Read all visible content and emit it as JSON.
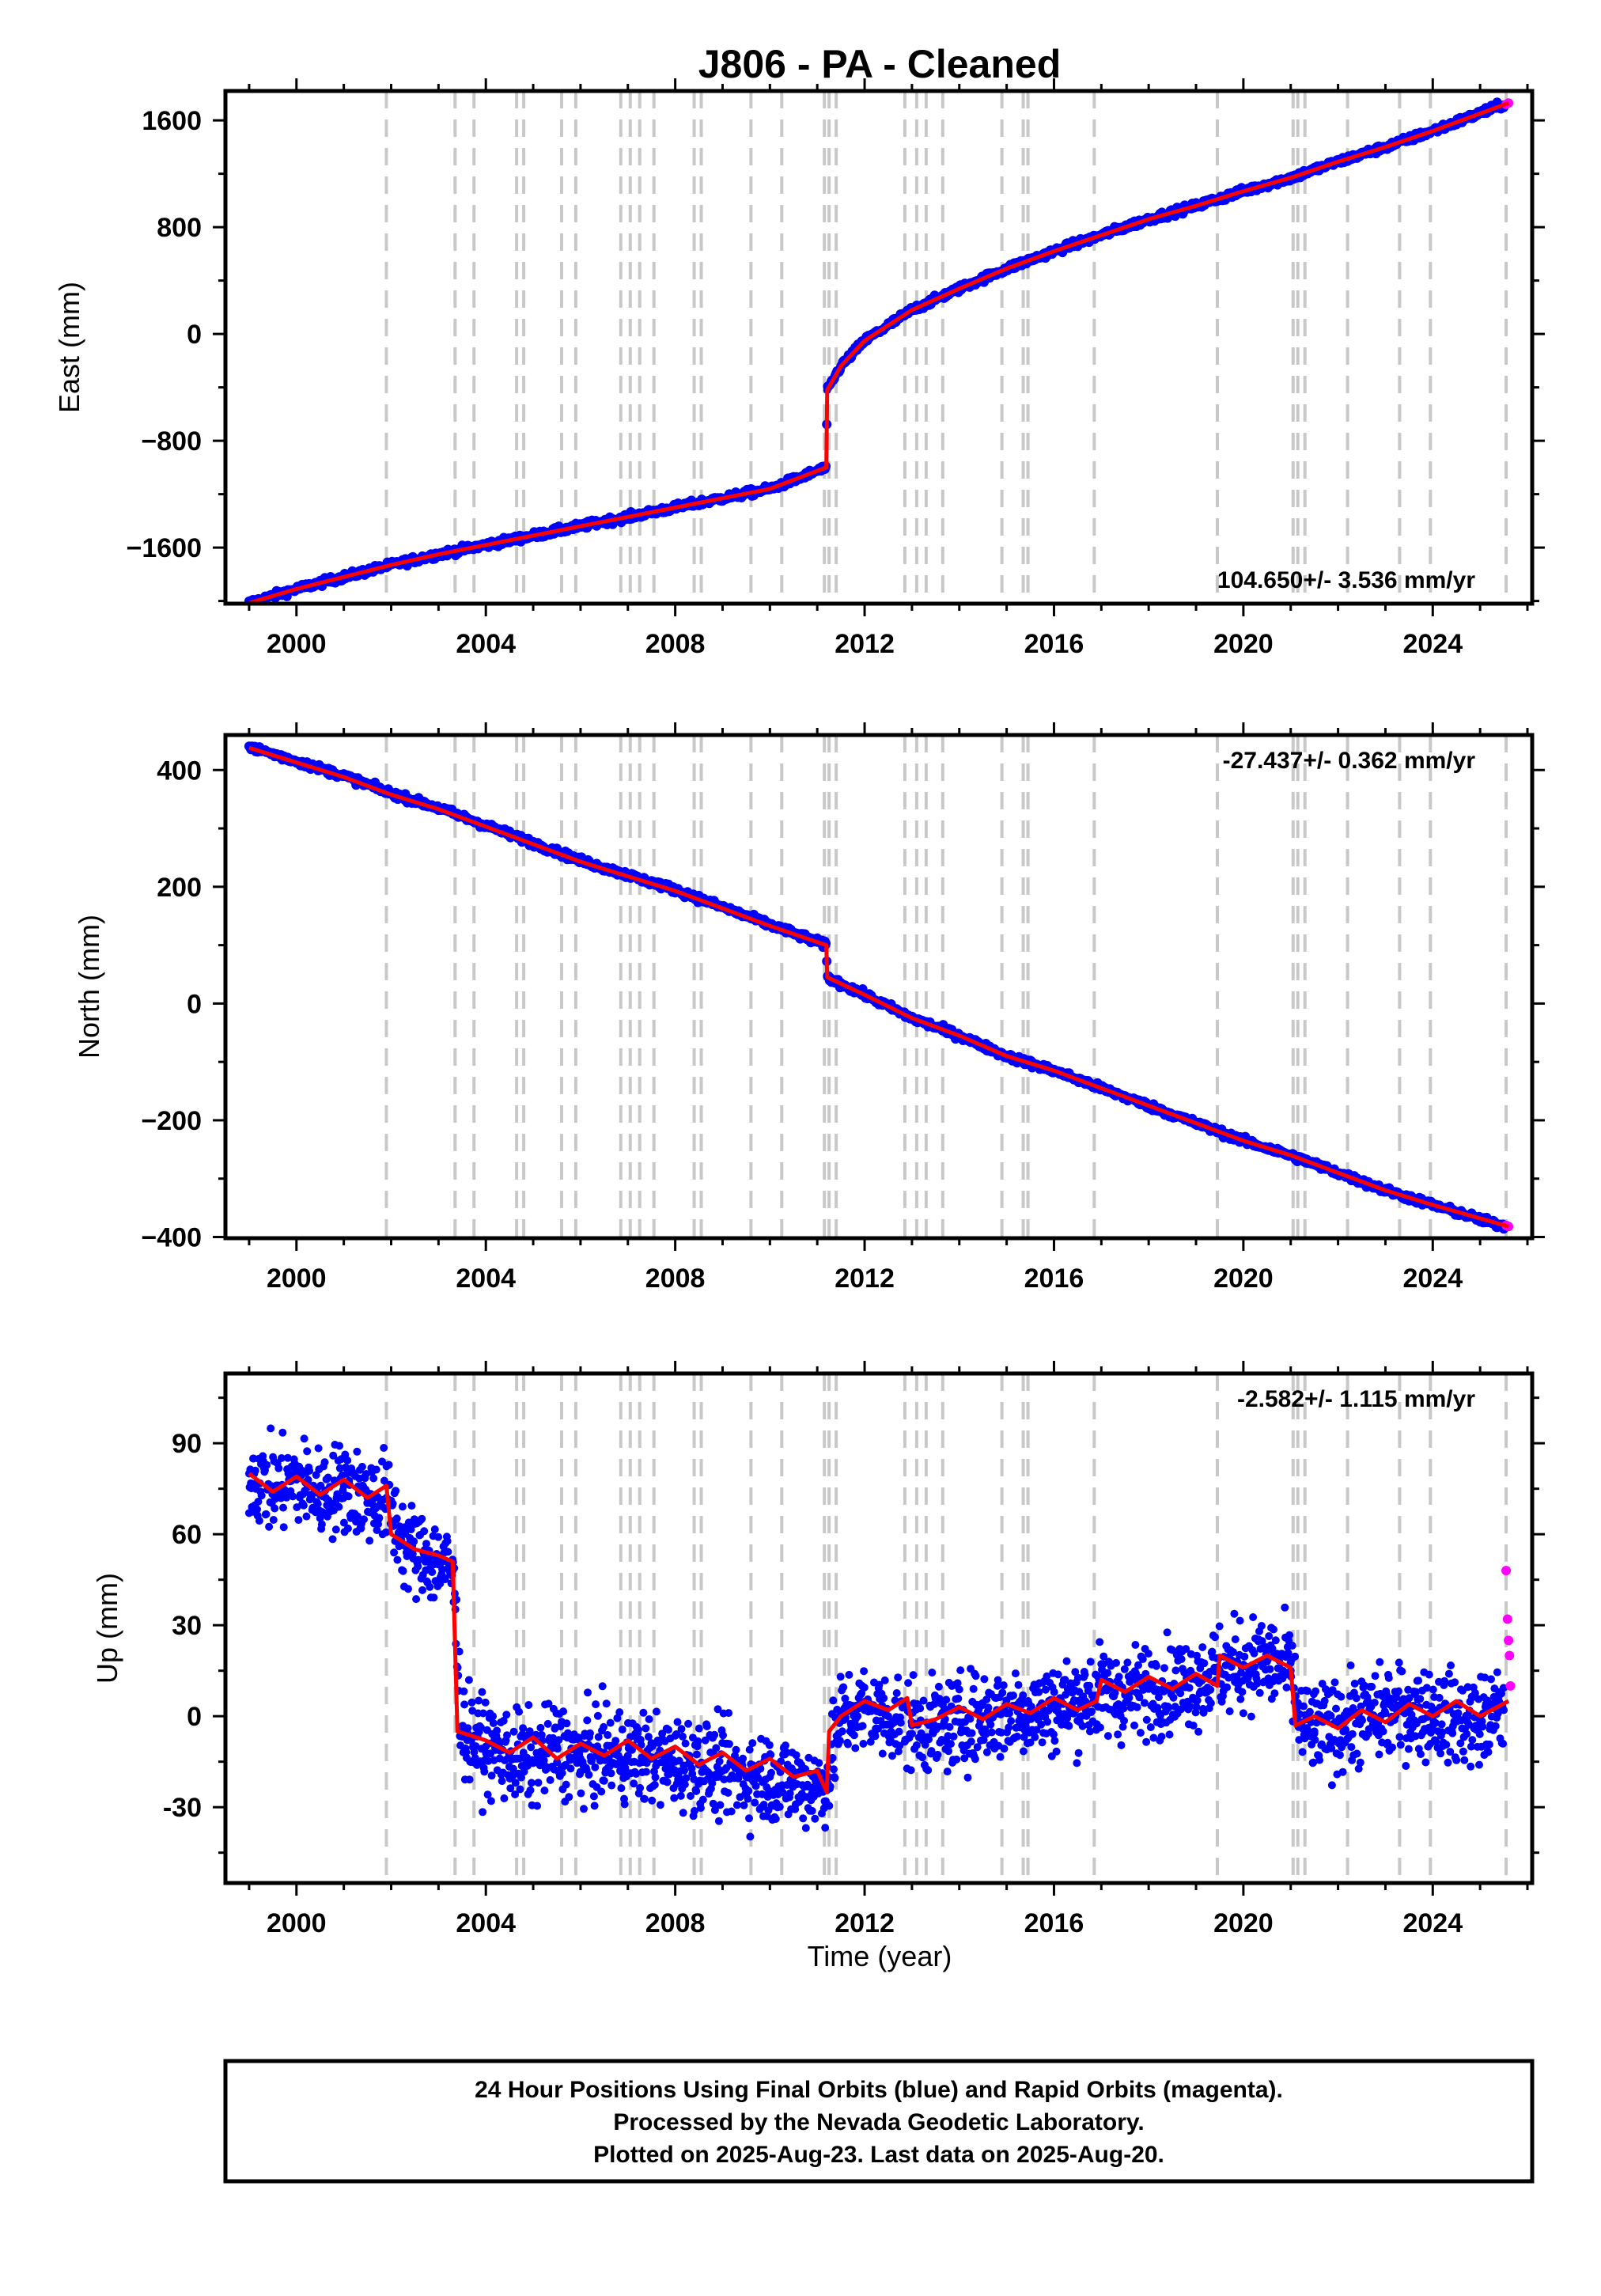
{
  "title": "J806  - PA - Cleaned",
  "xlabel": "Time (year)",
  "footer": {
    "line1": "24 Hour Positions Using Final Orbits (blue) and Rapid Orbits (magenta).",
    "line2": "Processed by the Nevada Geodetic Laboratory.",
    "line3": "Plotted on 2025-Aug-23. Last data on 2025-Aug-20."
  },
  "colors": {
    "final_orbits": "#0000ff",
    "rapid_orbits": "#ff00ff",
    "model": "#ff0000",
    "event_lines": "#c8c8c8"
  },
  "chart_data": [
    {
      "type": "scatter",
      "panel": "east",
      "ylabel": "East (mm)",
      "xlim": [
        1998.5,
        2026.1
      ],
      "ylim": [
        -2020,
        1820
      ],
      "xticks": [
        "2000",
        "2004",
        "2008",
        "2012",
        "2016",
        "2020",
        "2024"
      ],
      "yticks": [
        "1600",
        "800",
        "0",
        "−800",
        "−1600"
      ],
      "rate_label": "104.650+/- 3.536 mm/yr",
      "rate_position": "bottom-right",
      "event_lines_x": [
        2001.9,
        2003.35,
        2003.75,
        2004.65,
        2004.8,
        2005.6,
        2005.9,
        2006.85,
        2007.05,
        2007.25,
        2007.55,
        2008.4,
        2008.55,
        2009.6,
        2010.25,
        2011.15,
        2011.25,
        2011.4,
        2012.85,
        2013.1,
        2013.3,
        2013.65,
        2014.9,
        2015.35,
        2015.45,
        2016.85,
        2019.45,
        2021.05,
        2021.15,
        2021.3,
        2022.2,
        2023.3,
        2023.95,
        2025.55
      ],
      "series": [
        {
          "name": "Final Orbits",
          "marker": "dot",
          "x": [
            1999.0,
            2000.0,
            2001.0,
            2002.0,
            2003.0,
            2004.0,
            2005.0,
            2006.0,
            2007.0,
            2008.0,
            2009.0,
            2010.0,
            2011.19,
            2011.21,
            2011.5,
            2012.0,
            2013.0,
            2014.0,
            2015.0,
            2016.0,
            2017.0,
            2018.0,
            2019.0,
            2020.0,
            2021.0,
            2022.0,
            2023.0,
            2024.0,
            2025.5
          ],
          "y": [
            -2015,
            -1910,
            -1820,
            -1730,
            -1650,
            -1580,
            -1510,
            -1440,
            -1370,
            -1300,
            -1230,
            -1160,
            -1000,
            -420,
            -240,
            -50,
            180,
            340,
            490,
            620,
            740,
            860,
            960,
            1070,
            1170,
            1290,
            1400,
            1520,
            1720
          ]
        },
        {
          "name": "Rapid Orbits",
          "marker": "dot",
          "x": [
            2025.55,
            2025.6
          ],
          "y": [
            1720,
            1730
          ]
        },
        {
          "name": "Model",
          "marker": "line",
          "x": [
            1999.0,
            2000.0,
            2001.0,
            2002.0,
            2003.0,
            2004.0,
            2005.0,
            2006.0,
            2007.0,
            2008.0,
            2009.0,
            2010.0,
            2011.19,
            2011.21,
            2011.5,
            2012.0,
            2013.0,
            2014.0,
            2015.0,
            2016.0,
            2017.0,
            2018.0,
            2019.0,
            2020.0,
            2021.0,
            2022.0,
            2023.0,
            2024.0,
            2025.6
          ],
          "y": [
            -2015,
            -1910,
            -1820,
            -1730,
            -1650,
            -1580,
            -1510,
            -1440,
            -1370,
            -1300,
            -1230,
            -1160,
            -1000,
            -420,
            -240,
            -50,
            180,
            340,
            490,
            620,
            740,
            860,
            960,
            1070,
            1170,
            1290,
            1400,
            1520,
            1730
          ]
        }
      ]
    },
    {
      "type": "scatter",
      "panel": "north",
      "ylabel": "North (mm)",
      "xlim": [
        1998.5,
        2026.1
      ],
      "ylim": [
        -402,
        460
      ],
      "xticks": [
        "2000",
        "2004",
        "2008",
        "2012",
        "2016",
        "2020",
        "2024"
      ],
      "yticks": [
        "400",
        "200",
        "0",
        "−200",
        "−400"
      ],
      "rate_label": "-27.437+/- 0.362 mm/yr",
      "rate_position": "top-right",
      "series": [
        {
          "name": "Final Orbits",
          "marker": "dot",
          "x": [
            1999.0,
            2000.0,
            2001.0,
            2002.0,
            2003.0,
            2004.0,
            2005.0,
            2006.0,
            2007.0,
            2008.0,
            2009.0,
            2010.0,
            2011.19,
            2011.21,
            2012.0,
            2013.0,
            2014.0,
            2015.0,
            2016.0,
            2017.0,
            2018.0,
            2019.0,
            2020.0,
            2021.0,
            2022.0,
            2023.0,
            2024.0,
            2025.5
          ],
          "y": [
            440,
            415,
            390,
            360,
            335,
            305,
            275,
            245,
            220,
            195,
            165,
            135,
            100,
            45,
            15,
            -25,
            -55,
            -90,
            -115,
            -145,
            -175,
            -205,
            -235,
            -260,
            -290,
            -320,
            -345,
            -382
          ]
        },
        {
          "name": "Rapid Orbits",
          "marker": "dot",
          "x": [
            2025.55,
            2025.6
          ],
          "y": [
            -380,
            -382
          ]
        },
        {
          "name": "Model",
          "marker": "line",
          "x": [
            1999.0,
            2000.0,
            2001.0,
            2002.0,
            2003.0,
            2004.0,
            2005.0,
            2006.0,
            2007.0,
            2008.0,
            2009.0,
            2010.0,
            2011.19,
            2011.21,
            2012.0,
            2013.0,
            2014.0,
            2015.0,
            2016.0,
            2017.0,
            2018.0,
            2019.0,
            2020.0,
            2021.0,
            2022.0,
            2023.0,
            2024.0,
            2025.6
          ],
          "y": [
            438,
            413,
            388,
            358,
            333,
            303,
            273,
            243,
            218,
            193,
            163,
            133,
            100,
            45,
            15,
            -25,
            -55,
            -90,
            -115,
            -145,
            -175,
            -205,
            -235,
            -260,
            -290,
            -320,
            -345,
            -382
          ]
        }
      ]
    },
    {
      "type": "scatter",
      "panel": "up",
      "ylabel": "Up (mm)",
      "xlim": [
        1998.5,
        2026.1
      ],
      "ylim": [
        -55,
        113
      ],
      "xticks": [
        "2000",
        "2004",
        "2008",
        "2012",
        "2016",
        "2020",
        "2024"
      ],
      "yticks": [
        "90",
        "60",
        "30",
        "0",
        "-30"
      ],
      "rate_label": "-2.582+/- 1.115 mm/yr",
      "rate_position": "top-right",
      "series": [
        {
          "name": "Final Orbits",
          "marker": "dot",
          "x": [
            1999.0,
            1999.5,
            2000.0,
            2000.5,
            2001.0,
            2001.5,
            2001.9,
            2002.3,
            2002.7,
            2003.0,
            2003.3,
            2003.5,
            2004.0,
            2004.5,
            2005.0,
            2005.5,
            2006.0,
            2006.5,
            2007.0,
            2007.5,
            2008.0,
            2008.5,
            2009.0,
            2009.5,
            2010.0,
            2010.5,
            2011.0,
            2011.2,
            2011.5,
            2012.0,
            2012.5,
            2013.0,
            2013.5,
            2014.0,
            2014.5,
            2015.0,
            2015.5,
            2016.0,
            2016.5,
            2017.0,
            2017.5,
            2018.0,
            2018.5,
            2019.0,
            2019.5,
            2020.0,
            2020.5,
            2021.0,
            2021.2,
            2021.5,
            2022.0,
            2022.5,
            2023.0,
            2023.5,
            2024.0,
            2024.5,
            2025.0,
            2025.5
          ],
          "y": [
            80,
            75,
            78,
            73,
            76,
            72,
            72,
            56,
            53,
            50,
            48,
            -5,
            -10,
            -13,
            -15,
            -10,
            -14,
            -12,
            -13,
            -14,
            -15,
            -16,
            -18,
            -20,
            -20,
            -22,
            -23,
            -22,
            0,
            2,
            0,
            -3,
            -4,
            -2,
            0,
            1,
            2,
            3,
            5,
            8,
            7,
            9,
            10,
            12,
            15,
            17,
            18,
            15,
            -3,
            -5,
            -3,
            -1,
            1,
            2,
            1,
            -1,
            -2,
            2
          ]
        },
        {
          "name": "Rapid Orbits",
          "marker": "dot",
          "x": [
            2025.55,
            2025.58,
            2025.6,
            2025.62,
            2025.64
          ],
          "y": [
            48,
            32,
            25,
            20,
            10
          ]
        },
        {
          "name": "Model",
          "marker": "line",
          "x": [
            1999.0,
            1999.5,
            2000.0,
            2000.5,
            2001.0,
            2001.5,
            2001.9,
            2002.0,
            2002.5,
            2003.0,
            2003.3,
            2003.4,
            2004.0,
            2004.5,
            2005.0,
            2005.5,
            2006.0,
            2006.5,
            2007.0,
            2007.5,
            2008.0,
            2008.5,
            2009.0,
            2009.5,
            2010.0,
            2010.5,
            2011.0,
            2011.2,
            2011.25,
            2011.5,
            2012.0,
            2012.5,
            2012.9,
            2013.0,
            2013.5,
            2014.0,
            2014.5,
            2015.0,
            2015.5,
            2016.0,
            2016.5,
            2016.9,
            2017.0,
            2017.5,
            2018.0,
            2018.5,
            2019.0,
            2019.45,
            2019.5,
            2020.0,
            2020.5,
            2021.0,
            2021.1,
            2021.5,
            2022.0,
            2022.5,
            2023.0,
            2023.5,
            2024.0,
            2024.5,
            2025.0,
            2025.6
          ],
          "y": [
            80,
            74,
            79,
            73,
            78,
            72,
            76,
            60,
            55,
            53,
            51,
            -5,
            -8,
            -12,
            -7,
            -14,
            -9,
            -13,
            -8,
            -14,
            -10,
            -16,
            -12,
            -18,
            -14,
            -20,
            -18,
            -25,
            -5,
            0,
            5,
            2,
            6,
            -3,
            -1,
            3,
            -1,
            4,
            1,
            6,
            2,
            5,
            12,
            8,
            13,
            9,
            14,
            10,
            20,
            16,
            20,
            16,
            -3,
            0,
            -4,
            2,
            -2,
            4,
            0,
            5,
            0,
            5
          ]
        }
      ]
    }
  ]
}
